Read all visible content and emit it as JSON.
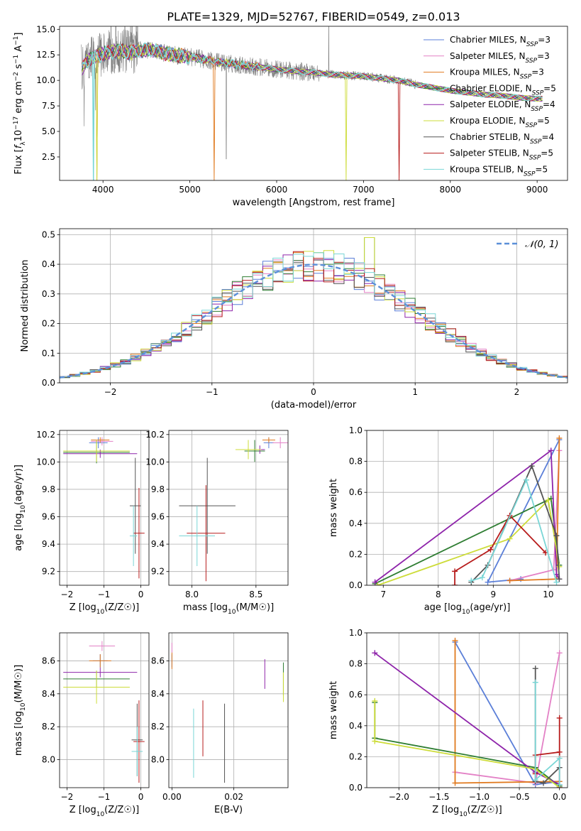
{
  "title": "PLATE=1329, MJD=52767, FIBERID=0549, z=0.013",
  "colors": [
    "#5b7fd8",
    "#e381c6",
    "#e07a1f",
    "#2e7d32",
    "#8e24aa",
    "#cddc39",
    "#555555",
    "#b71c1c",
    "#7ad6d6"
  ],
  "legend": [
    "Chabrier MILES, N_SSP=3",
    "Salpeter MILES, N_SSP=3",
    "Kroupa MILES, N_SSP=3",
    "Chabrier ELODIE, N_SSP=5",
    "Salpeter ELODIE, N_SSP=4",
    "Kroupa ELODIE, N_SSP=5",
    "Chabrier STELIB, N_SSP=4",
    "Salpeter STELIB, N_SSP=5",
    "Kroupa STELIB, N_SSP=5"
  ],
  "chart_data": [
    {
      "id": "spectrum",
      "type": "line",
      "title": "PLATE=1329, MJD=52767, FIBERID=0549, z=0.013",
      "xlabel": "wavelength [Angstrom, rest frame]",
      "ylabel": "Flux [f_λ 10^-17 erg cm^-2 s^-1 A^-1]",
      "xlim": [
        3500,
        9350
      ],
      "ylim": [
        0.2,
        15.3
      ],
      "xticks": [
        4000,
        5000,
        6000,
        7000,
        8000,
        9000
      ],
      "yticks": [
        2.5,
        5.0,
        7.5,
        10.0,
        12.5,
        15.0
      ],
      "ytick_labels": [
        "2.5",
        "5.0",
        "7.5",
        "10.0",
        "12.5",
        "15.0"
      ],
      "continuum": {
        "x": [
          3750,
          3800,
          3900,
          4000,
          4100,
          4200,
          4300,
          4400,
          4500,
          4600,
          4700,
          4800,
          4900,
          5000,
          5200,
          5400,
          5600,
          5800,
          6000,
          6200,
          6400,
          6600,
          6800,
          7000,
          7200,
          7400,
          7600,
          7800,
          8000,
          8200,
          8400,
          8600,
          8800,
          9000,
          9060
        ],
        "y": [
          11.0,
          11.8,
          12.3,
          12.6,
          12.8,
          12.9,
          12.7,
          12.9,
          13.0,
          12.9,
          12.7,
          12.5,
          12.4,
          12.3,
          12.0,
          11.7,
          11.5,
          11.3,
          11.1,
          10.9,
          10.8,
          10.6,
          10.5,
          10.4,
          10.2,
          10.0,
          9.6,
          9.3,
          9.0,
          8.8,
          8.6,
          8.5,
          8.3,
          8.2,
          8.2
        ]
      },
      "legend_placement": "top-right",
      "grid": false
    },
    {
      "id": "residuals",
      "type": "histogram",
      "xlabel": "(data-model)/error",
      "ylabel": "Normed distribution",
      "xlim": [
        -2.5,
        2.5
      ],
      "ylim": [
        0,
        0.52
      ],
      "xticks": [
        -2,
        -1,
        0,
        1,
        2
      ],
      "xtick_labels": [
        "−2",
        "−1",
        "0",
        "1",
        "2"
      ],
      "yticks": [
        0.0,
        0.1,
        0.2,
        0.3,
        0.4,
        0.5
      ],
      "ytick_labels": [
        "0.0",
        "0.1",
        "0.2",
        "0.3",
        "0.4",
        "0.5"
      ],
      "bin_width": 0.1,
      "reference": {
        "label": "𝒩(0, 1)",
        "mu": 0,
        "sigma": 1,
        "style": "dashed"
      },
      "legend_placement": "top-right",
      "grid": true
    },
    {
      "id": "age_vs_Z",
      "type": "errorbar",
      "xlabel": "Z [log10(Z/Z☉)]",
      "ylabel": "age  [log10(age/yr)]",
      "xlim": [
        -2.2,
        0.22
      ],
      "ylim": [
        9.1,
        10.23
      ],
      "xticks": [
        -2,
        -1,
        0
      ],
      "xtick_labels": [
        "−2",
        "−1",
        "0"
      ],
      "yticks": [
        9.2,
        9.4,
        9.6,
        9.8,
        10.0,
        10.2
      ],
      "ytick_labels": [
        "9.2",
        "9.4",
        "9.6",
        "9.8",
        "10.0",
        "10.2"
      ],
      "grid": true,
      "points": [
        {
          "c": 0,
          "x": -1.15,
          "xerr": 0.25,
          "y": 10.14,
          "yerr": 0.04
        },
        {
          "c": 1,
          "x": -1.05,
          "xerr": 0.3,
          "y": 10.15,
          "yerr": 0.03
        },
        {
          "c": 2,
          "x": -1.1,
          "xerr": 0.25,
          "y": 10.16,
          "yerr": 0.02
        },
        {
          "c": 3,
          "x": -1.2,
          "xerr": 0.9,
          "y": 10.07,
          "yerr": 0.08
        },
        {
          "c": 4,
          "x": -1.1,
          "xerr": 1.0,
          "y": 10.06,
          "yerr": 0.03
        },
        {
          "c": 5,
          "x": -1.2,
          "xerr": 0.9,
          "y": 10.08,
          "yerr": 0.08
        },
        {
          "c": 6,
          "x": -0.15,
          "xerr": 0.15,
          "y": 9.68,
          "yerr": 0.35
        },
        {
          "c": 7,
          "x": -0.05,
          "xerr": 0.15,
          "y": 9.48,
          "yerr": 0.33
        },
        {
          "c": 8,
          "x": -0.2,
          "xerr": 0.1,
          "y": 9.46,
          "yerr": 0.22
        }
      ]
    },
    {
      "id": "age_vs_mass",
      "type": "errorbar",
      "xlabel": "mass [log10(M/M☉)]",
      "ylabel": "",
      "xlim": [
        7.82,
        8.75
      ],
      "ylim": [
        9.1,
        10.23
      ],
      "xticks": [
        8.0,
        8.5
      ],
      "xtick_labels": [
        "8.0",
        "8.5"
      ],
      "yticks": [
        9.2,
        9.4,
        9.6,
        9.8,
        10.0,
        10.2
      ],
      "ytick_labels": [
        "9.2",
        "9.4",
        "9.6",
        "9.8",
        "10.0",
        "10.2"
      ],
      "grid": true,
      "points": [
        {
          "c": 0,
          "x": 8.6,
          "xerr": 0.04,
          "y": 10.14,
          "yerr": 0.04
        },
        {
          "c": 1,
          "x": 8.69,
          "xerr": 0.06,
          "y": 10.14,
          "yerr": 0.04
        },
        {
          "c": 2,
          "x": 8.6,
          "xerr": 0.05,
          "y": 10.16,
          "yerr": 0.02
        },
        {
          "c": 3,
          "x": 8.49,
          "xerr": 0.08,
          "y": 10.08,
          "yerr": 0.08
        },
        {
          "c": 4,
          "x": 8.53,
          "xerr": 0.04,
          "y": 10.09,
          "yerr": 0.03
        },
        {
          "c": 5,
          "x": 8.44,
          "xerr": 0.1,
          "y": 10.09,
          "yerr": 0.07
        },
        {
          "c": 6,
          "x": 8.12,
          "xerr": 0.22,
          "y": 9.68,
          "yerr": 0.35
        },
        {
          "c": 7,
          "x": 8.11,
          "xerr": 0.15,
          "y": 9.48,
          "yerr": 0.35
        },
        {
          "c": 8,
          "x": 8.04,
          "xerr": 0.14,
          "y": 9.46,
          "yerr": 0.22
        }
      ]
    },
    {
      "id": "weight_vs_age",
      "type": "line",
      "xlabel": "age  [log10(age/yr)]",
      "ylabel": "mass weight",
      "xlim": [
        6.7,
        10.35
      ],
      "ylim": [
        0,
        1.0
      ],
      "xticks": [
        7,
        8,
        9,
        10
      ],
      "xtick_labels": [
        "7",
        "8",
        "9",
        "10"
      ],
      "yticks": [
        0.0,
        0.2,
        0.4,
        0.6,
        0.8,
        1.0
      ],
      "ytick_labels": [
        "0.0",
        "0.2",
        "0.4",
        "0.6",
        "0.8",
        "1.0"
      ],
      "grid": true,
      "series": [
        {
          "c": 0,
          "x": [
            9.5,
            8.9,
            10.2
          ],
          "y": [
            0.04,
            0.02,
            0.94
          ]
        },
        {
          "c": 1,
          "x": [
            9.3,
            10.1,
            10.2
          ],
          "y": [
            0.03,
            0.1,
            0.87
          ]
        },
        {
          "c": 2,
          "x": [
            9.3,
            10.15,
            10.2
          ],
          "y": [
            0.03,
            0.04,
            0.95
          ]
        },
        {
          "c": 3,
          "x": [
            6.85,
            10.05,
            10.2
          ],
          "y": [
            0.01,
            0.56,
            0.13
          ]
        },
        {
          "c": 4,
          "x": [
            6.85,
            10.05,
            10.15,
            10.2
          ],
          "y": [
            0.02,
            0.87,
            0.07,
            0.04
          ]
        },
        {
          "c": 5,
          "x": [
            6.9,
            9.3,
            10.0,
            10.2
          ],
          "y": [
            0.0,
            0.3,
            0.55,
            0.12
          ]
        },
        {
          "c": 6,
          "x": [
            8.6,
            8.9,
            9.7,
            10.15,
            10.2
          ],
          "y": [
            0.02,
            0.13,
            0.77,
            0.32,
            0.04
          ]
        },
        {
          "c": 7,
          "x": [
            8.3,
            8.3,
            8.95,
            9.3,
            9.95
          ],
          "y": [
            0.0,
            0.09,
            0.23,
            0.45,
            0.21
          ]
        },
        {
          "c": 8,
          "x": [
            8.6,
            8.8,
            9.6,
            10.15
          ],
          "y": [
            0.03,
            0.05,
            0.68,
            0.02
          ]
        }
      ]
    },
    {
      "id": "mass_vs_Z",
      "type": "errorbar",
      "xlabel": "Z [log10(Z/Z☉)]",
      "ylabel": "mass [log10(M/M☉)]",
      "xlim": [
        -2.2,
        0.22
      ],
      "ylim": [
        7.83,
        8.77
      ],
      "xticks": [
        -2,
        -1,
        0
      ],
      "xtick_labels": [
        "−2",
        "−1",
        "0"
      ],
      "yticks": [
        8.0,
        8.2,
        8.4,
        8.6
      ],
      "ytick_labels": [
        "8.0",
        "8.2",
        "8.4",
        "8.6"
      ],
      "grid": true,
      "points": [
        {
          "c": 0,
          "x": -1.1,
          "xerr": 0.2,
          "y": 8.6,
          "yerr": 0.04
        },
        {
          "c": 1,
          "x": -1.05,
          "xerr": 0.35,
          "y": 8.69,
          "yerr": 0.03
        },
        {
          "c": 2,
          "x": -1.1,
          "xerr": 0.3,
          "y": 8.6,
          "yerr": 0.04
        },
        {
          "c": 3,
          "x": -1.2,
          "xerr": 0.9,
          "y": 8.49,
          "yerr": 0.05
        },
        {
          "c": 4,
          "x": -1.1,
          "xerr": 1.0,
          "y": 8.53,
          "yerr": 0.03
        },
        {
          "c": 5,
          "x": -1.2,
          "xerr": 0.9,
          "y": 8.44,
          "yerr": 0.1
        },
        {
          "c": 6,
          "x": -0.1,
          "xerr": 0.15,
          "y": 8.12,
          "yerr": 0.22
        },
        {
          "c": 7,
          "x": -0.05,
          "xerr": 0.15,
          "y": 8.11,
          "yerr": 0.25
        },
        {
          "c": 8,
          "x": -0.1,
          "xerr": 0.15,
          "y": 8.05,
          "yerr": 0.15
        }
      ]
    },
    {
      "id": "mass_vs_EBV",
      "type": "errorbar",
      "xlabel": "E(B-V)",
      "ylabel": "",
      "xlim": [
        -0.001,
        0.0375
      ],
      "ylim": [
        7.83,
        8.77
      ],
      "xticks": [
        0.0,
        0.02
      ],
      "xtick_labels": [
        "0.00",
        "0.02"
      ],
      "yticks": [
        8.0,
        8.2,
        8.4,
        8.6
      ],
      "ytick_labels": [
        "8.0",
        "8.2",
        "8.4",
        "8.6"
      ],
      "grid": true,
      "points": [
        {
          "c": 0,
          "x": 0.0,
          "y": 8.6,
          "yerr": 0.04
        },
        {
          "c": 1,
          "x": 0.0,
          "y": 8.68,
          "yerr": 0.03
        },
        {
          "c": 2,
          "x": 0.0,
          "y": 8.6,
          "yerr": 0.05
        },
        {
          "c": 3,
          "x": 0.036,
          "y": 8.49,
          "yerr": 0.1
        },
        {
          "c": 4,
          "x": 0.03,
          "y": 8.52,
          "yerr": 0.09
        },
        {
          "c": 5,
          "x": 0.036,
          "y": 8.44,
          "yerr": 0.09
        },
        {
          "c": 6,
          "x": 0.017,
          "y": 8.1,
          "yerr": 0.24
        },
        {
          "c": 7,
          "x": 0.01,
          "y": 8.19,
          "yerr": 0.17
        },
        {
          "c": 8,
          "x": 0.007,
          "y": 8.1,
          "yerr": 0.21
        }
      ]
    },
    {
      "id": "weight_vs_Z",
      "type": "line",
      "xlabel": "Z [log10(Z/Z☉)]",
      "ylabel": "mass weight",
      "xlim": [
        -2.4,
        0.1
      ],
      "ylim": [
        0,
        1.0
      ],
      "xticks": [
        -2.0,
        -1.5,
        -1.0,
        -0.5,
        0.0
      ],
      "xtick_labels": [
        "−2.0",
        "−1.5",
        "−1.0",
        "−0.5",
        "0.0"
      ],
      "yticks": [
        0.0,
        0.2,
        0.4,
        0.6,
        0.8,
        1.0
      ],
      "ytick_labels": [
        "0.0",
        "0.2",
        "0.4",
        "0.6",
        "0.8",
        "1.0"
      ],
      "grid": true,
      "series": [
        {
          "c": 0,
          "x": [
            -1.3,
            -0.3,
            0.0
          ],
          "y": [
            0.94,
            0.02,
            0.04
          ]
        },
        {
          "c": 1,
          "x": [
            -1.3,
            -0.3,
            0.0
          ],
          "y": [
            0.1,
            0.03,
            0.87
          ]
        },
        {
          "c": 2,
          "x": [
            -1.3,
            -1.3,
            0.0
          ],
          "y": [
            0.95,
            0.03,
            0.04
          ]
        },
        {
          "c": 3,
          "x": [
            -2.3,
            -2.3,
            -0.3,
            0.0
          ],
          "y": [
            0.55,
            0.32,
            0.13,
            0.01
          ]
        },
        {
          "c": 4,
          "x": [
            -2.3,
            -0.3,
            0.0
          ],
          "y": [
            0.87,
            0.1,
            0.02
          ]
        },
        {
          "c": 5,
          "x": [
            -2.3,
            -2.3,
            -0.3,
            0.0
          ],
          "y": [
            0.56,
            0.3,
            0.12,
            0.0
          ]
        },
        {
          "c": 6,
          "x": [
            -0.3,
            -0.3,
            -0.2,
            0.0
          ],
          "y": [
            0.77,
            0.04,
            0.03,
            0.13
          ]
        },
        {
          "c": 7,
          "x": [
            -0.3,
            -0.3,
            0.0,
            0.0,
            0.0
          ],
          "y": [
            0.09,
            0.21,
            0.23,
            0.45,
            0.0
          ]
        },
        {
          "c": 8,
          "x": [
            -0.3,
            -0.3,
            0.0,
            0.0
          ],
          "y": [
            0.68,
            0.05,
            0.19,
            0.02
          ]
        }
      ]
    }
  ]
}
